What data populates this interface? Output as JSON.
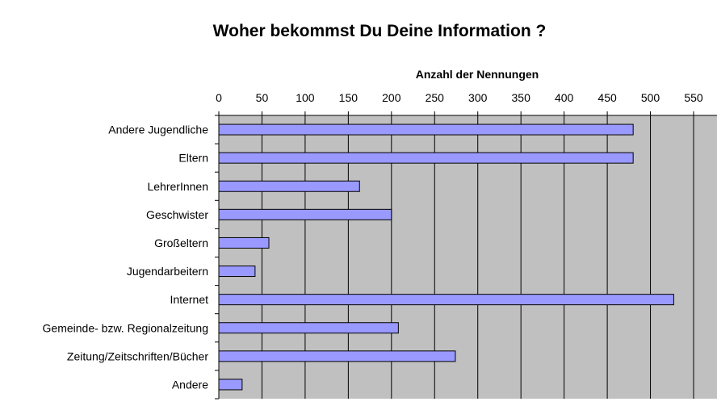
{
  "colors": {
    "plot_bg": "#c0c0c0",
    "bar_fill": "#9999ff",
    "bar_stroke": "#000000",
    "gridline": "#000000"
  },
  "chart_data": {
    "type": "bar",
    "orientation": "horizontal",
    "title": "Woher bekommst Du Deine Information ?",
    "xlabel": "Anzahl der Nennungen",
    "ylabel": "",
    "xaxis_position": "top",
    "xlim": [
      0,
      575
    ],
    "xticks": [
      0,
      50,
      100,
      150,
      200,
      250,
      300,
      350,
      400,
      450,
      500,
      550
    ],
    "grid": true,
    "legend": "none",
    "categories": [
      "Andere Jugendliche",
      "Eltern",
      "LehrerInnen",
      "Geschwister",
      "Großeltern",
      "Jugendarbeitern",
      "Internet",
      "Gemeinde- bzw. Regionalzeitung",
      "Zeitung/Zeitschriften/Bücher",
      "Andere"
    ],
    "values": [
      480,
      480,
      163,
      200,
      58,
      42,
      527,
      208,
      274,
      27
    ]
  }
}
